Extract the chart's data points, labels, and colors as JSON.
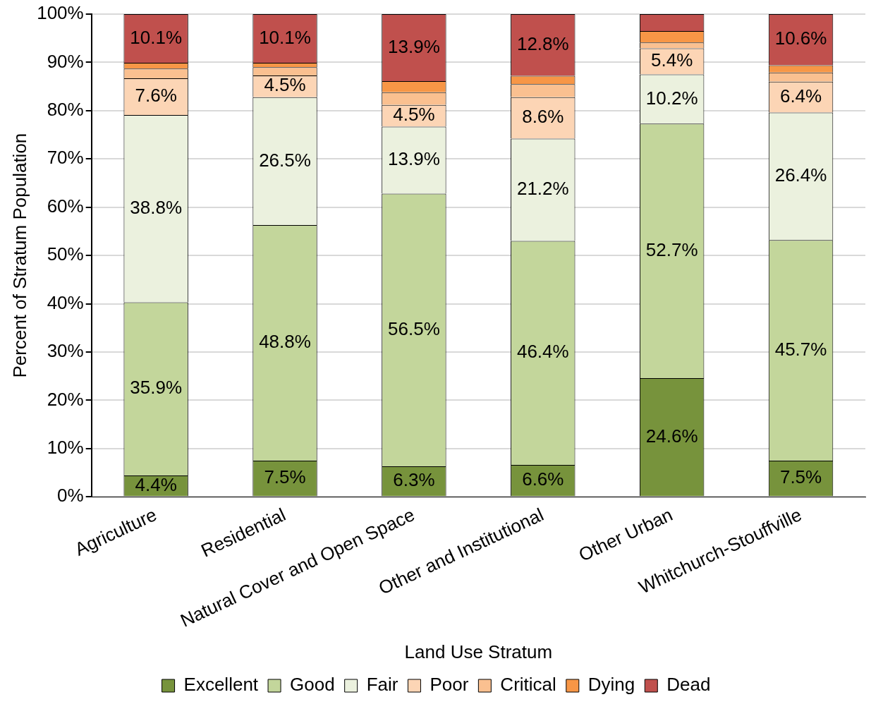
{
  "chart_data": {
    "type": "bar",
    "stacked": true,
    "xlabel": "Land Use Stratum",
    "ylabel": "Percent of Stratum Population",
    "categories": [
      "Agriculture",
      "Residential",
      "Natural Cover and Open Space",
      "Other and Institutional",
      "Other Urban",
      "Whitchurch-Stouffville"
    ],
    "series": [
      {
        "name": "Excellent",
        "color": "#77933c",
        "values": [
          4.4,
          7.5,
          6.3,
          6.6,
          24.6,
          7.5
        ],
        "value_labels": [
          "4.4%",
          "7.5%",
          "6.3%",
          "6.6%",
          "24.6%",
          "7.5%"
        ]
      },
      {
        "name": "Good",
        "color": "#c3d69b",
        "values": [
          35.9,
          48.8,
          56.5,
          46.4,
          52.7,
          45.7
        ],
        "value_labels": [
          "35.9%",
          "48.8%",
          "56.5%",
          "46.4%",
          "52.7%",
          "45.7%"
        ]
      },
      {
        "name": "Fair",
        "color": "#ebf1de",
        "values": [
          38.8,
          26.5,
          13.9,
          21.2,
          10.2,
          26.4
        ],
        "value_labels": [
          "38.8%",
          "26.5%",
          "13.9%",
          "21.2%",
          "10.2%",
          "26.4%"
        ]
      },
      {
        "name": "Poor",
        "color": "#fcd5b5",
        "values": [
          7.6,
          4.5,
          4.5,
          8.6,
          5.4,
          6.4
        ],
        "value_labels": [
          "7.6%",
          "4.5%",
          "4.5%",
          "8.6%",
          "5.4%",
          "6.4%"
        ]
      },
      {
        "name": "Critical",
        "color": "#fac090",
        "values": [
          2.0,
          1.7,
          2.6,
          2.7,
          1.2,
          1.9
        ]
      },
      {
        "name": "Dying",
        "color": "#f79646",
        "values": [
          1.2,
          0.9,
          2.3,
          1.7,
          2.4,
          1.5
        ]
      },
      {
        "name": "Dead",
        "color": "#c0504d",
        "values": [
          10.1,
          10.1,
          13.9,
          12.8,
          3.5,
          10.6
        ],
        "value_labels": [
          "10.1%",
          "10.1%",
          "13.9%",
          "12.8%",
          null,
          "10.6%"
        ]
      }
    ],
    "ylim": [
      0,
      100
    ],
    "yticks": [
      {
        "value": 0,
        "label": "0%"
      },
      {
        "value": 10,
        "label": "10%"
      },
      {
        "value": 20,
        "label": "20%"
      },
      {
        "value": 30,
        "label": "30%"
      },
      {
        "value": 40,
        "label": "40%"
      },
      {
        "value": 50,
        "label": "50%"
      },
      {
        "value": 60,
        "label": "60%"
      },
      {
        "value": 70,
        "label": "70%"
      },
      {
        "value": 80,
        "label": "80%"
      },
      {
        "value": 90,
        "label": "90%"
      },
      {
        "value": 100,
        "label": "100%"
      }
    ],
    "grid": "y",
    "legend": "bottom"
  }
}
